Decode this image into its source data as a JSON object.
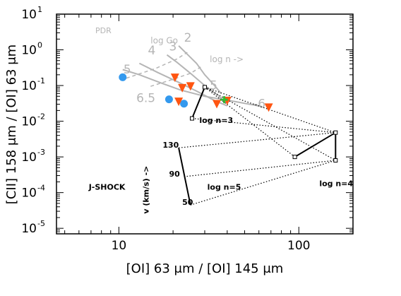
{
  "chart_data": {
    "type": "scatter",
    "x_scale": "log",
    "y_scale": "log",
    "xlim": [
      4.5,
      200
    ],
    "ylim": [
      7e-06,
      10
    ],
    "x_tick_labels": [
      {
        "value": 10,
        "text": "10"
      },
      {
        "value": 100,
        "text": "100"
      }
    ],
    "y_tick_labels": [
      {
        "value": 10,
        "base": "10",
        "exp": "1"
      },
      {
        "value": 1,
        "base": "10",
        "exp": "0"
      },
      {
        "value": 0.1,
        "base": "10",
        "exp": "-1"
      },
      {
        "value": 0.01,
        "base": "10",
        "exp": "-2"
      },
      {
        "value": 0.001,
        "base": "10",
        "exp": "-3"
      },
      {
        "value": 0.0001,
        "base": "10",
        "exp": "-4"
      },
      {
        "value": 1e-05,
        "base": "10",
        "exp": "-5"
      }
    ],
    "xlabel": "[OI] 63 μm / [OI] 145 μm",
    "ylabel": "[CII] 158 μm / [OI] 63 μm",
    "colors": {
      "pdr_grid": "#b5b5b5",
      "blue_points": "#3399ee",
      "orange_points": "#ff5511",
      "green_point": "#33bb33",
      "shock_grid": "#000000"
    },
    "pdr_curves": [
      [
        [
          10.5,
          0.28
        ],
        [
          13,
          0.2
        ],
        [
          17,
          0.12
        ],
        [
          22,
          0.075
        ],
        [
          30,
          0.05
        ],
        [
          45,
          0.035
        ],
        [
          62,
          0.026
        ]
      ],
      [
        [
          13,
          0.42
        ],
        [
          16.5,
          0.23
        ],
        [
          21,
          0.13
        ],
        [
          27,
          0.07
        ],
        [
          34,
          0.038
        ],
        [
          40,
          0.027
        ]
      ],
      [
        [
          18.5,
          0.72
        ],
        [
          21,
          0.45
        ],
        [
          25,
          0.22
        ],
        [
          30,
          0.1
        ],
        [
          36,
          0.05
        ],
        [
          40,
          0.032
        ]
      ],
      [
        [
          21.5,
          1.3
        ],
        [
          24,
          0.75
        ],
        [
          27,
          0.42
        ],
        [
          30,
          0.2
        ],
        [
          34,
          0.1
        ],
        [
          37,
          0.06
        ]
      ]
    ],
    "pdr_gradient_lines": [
      [
        [
          11,
          0.16
        ],
        [
          16,
          0.3
        ],
        [
          21,
          0.55
        ],
        [
          24,
          0.85
        ]
      ],
      [
        [
          15,
          0.095
        ],
        [
          20,
          0.15
        ],
        [
          25,
          0.22
        ],
        [
          28.5,
          0.33
        ]
      ]
    ],
    "pdr_labels": [
      {
        "text": "PDR",
        "x": 7.4,
        "y": 2.9
      },
      {
        "text": "2",
        "x": 23,
        "y": 1.7
      },
      {
        "text": "3",
        "x": 19,
        "y": 0.95
      },
      {
        "text": "4",
        "x": 14.5,
        "y": 0.75
      },
      {
        "text": "5",
        "x": 10.6,
        "y": 0.22
      },
      {
        "text": "6.5",
        "x": 12.5,
        "y": 0.034
      },
      {
        "text": "5",
        "x": 32,
        "y": 0.078
      },
      {
        "text": "-6",
        "x": 56,
        "y": 0.024
      },
      {
        "text": "log Go",
        "x": 15,
        "y": 1.5
      },
      {
        "text": "log n ->",
        "x": 32,
        "y": 0.45
      }
    ],
    "blue_points": [
      [
        10.5,
        0.17
      ],
      [
        19,
        0.041
      ],
      [
        23,
        0.031
      ]
    ],
    "orange_points": [
      [
        20.5,
        0.165
      ],
      [
        22.5,
        0.084
      ],
      [
        25,
        0.094
      ],
      [
        21.5,
        0.035
      ],
      [
        35,
        0.03
      ],
      [
        40,
        0.037
      ],
      [
        68,
        0.024
      ]
    ],
    "green_point": [
      38.5,
      0.04
    ],
    "shock_grid": {
      "solid_lines": [
        [
          [
            25.5,
            0.012
          ],
          [
            30,
            0.09
          ]
        ],
        [
          [
            95,
            0.001
          ],
          [
            160,
            0.0048
          ],
          [
            160,
            0.0008
          ]
        ],
        [
          [
            21.5,
            0.0018
          ],
          [
            25,
            4.5e-05
          ]
        ]
      ],
      "dotted_lines": [
        [
          [
            25.5,
            0.012
          ],
          [
            160,
            0.0048
          ]
        ],
        [
          [
            30,
            0.09
          ],
          [
            160,
            0.0048
          ]
        ],
        [
          [
            30,
            0.09
          ],
          [
            95,
            0.001
          ]
        ],
        [
          [
            30,
            0.09
          ],
          [
            160,
            0.0008
          ]
        ],
        [
          [
            21.5,
            0.0018
          ],
          [
            160,
            0.0048
          ]
        ],
        [
          [
            23,
            0.00028
          ],
          [
            160,
            0.0008
          ]
        ],
        [
          [
            25,
            4.5e-05
          ],
          [
            160,
            0.0008
          ]
        ]
      ],
      "markers": [
        [
          25.5,
          0.012
        ],
        [
          30,
          0.09
        ],
        [
          95,
          0.001
        ],
        [
          160,
          0.0048
        ],
        [
          160,
          0.0008
        ]
      ]
    },
    "annotations": [
      {
        "text": "log n=3",
        "x": 28,
        "y": 0.009
      },
      {
        "text": "log n=4",
        "x": 130,
        "y": 0.00015
      },
      {
        "text": "log n=5",
        "x": 31,
        "y": 0.00012
      },
      {
        "text": "130",
        "x": 17.5,
        "y": 0.0018
      },
      {
        "text": "90",
        "x": 19,
        "y": 0.00028
      },
      {
        "text": "50",
        "x": 22.5,
        "y": 4.5e-05
      },
      {
        "text": "v (km/s) ->",
        "x": 14.6,
        "y": 0.00012
      },
      {
        "text": "J-SHOCK",
        "x": 6.8,
        "y": 0.00012
      }
    ]
  }
}
